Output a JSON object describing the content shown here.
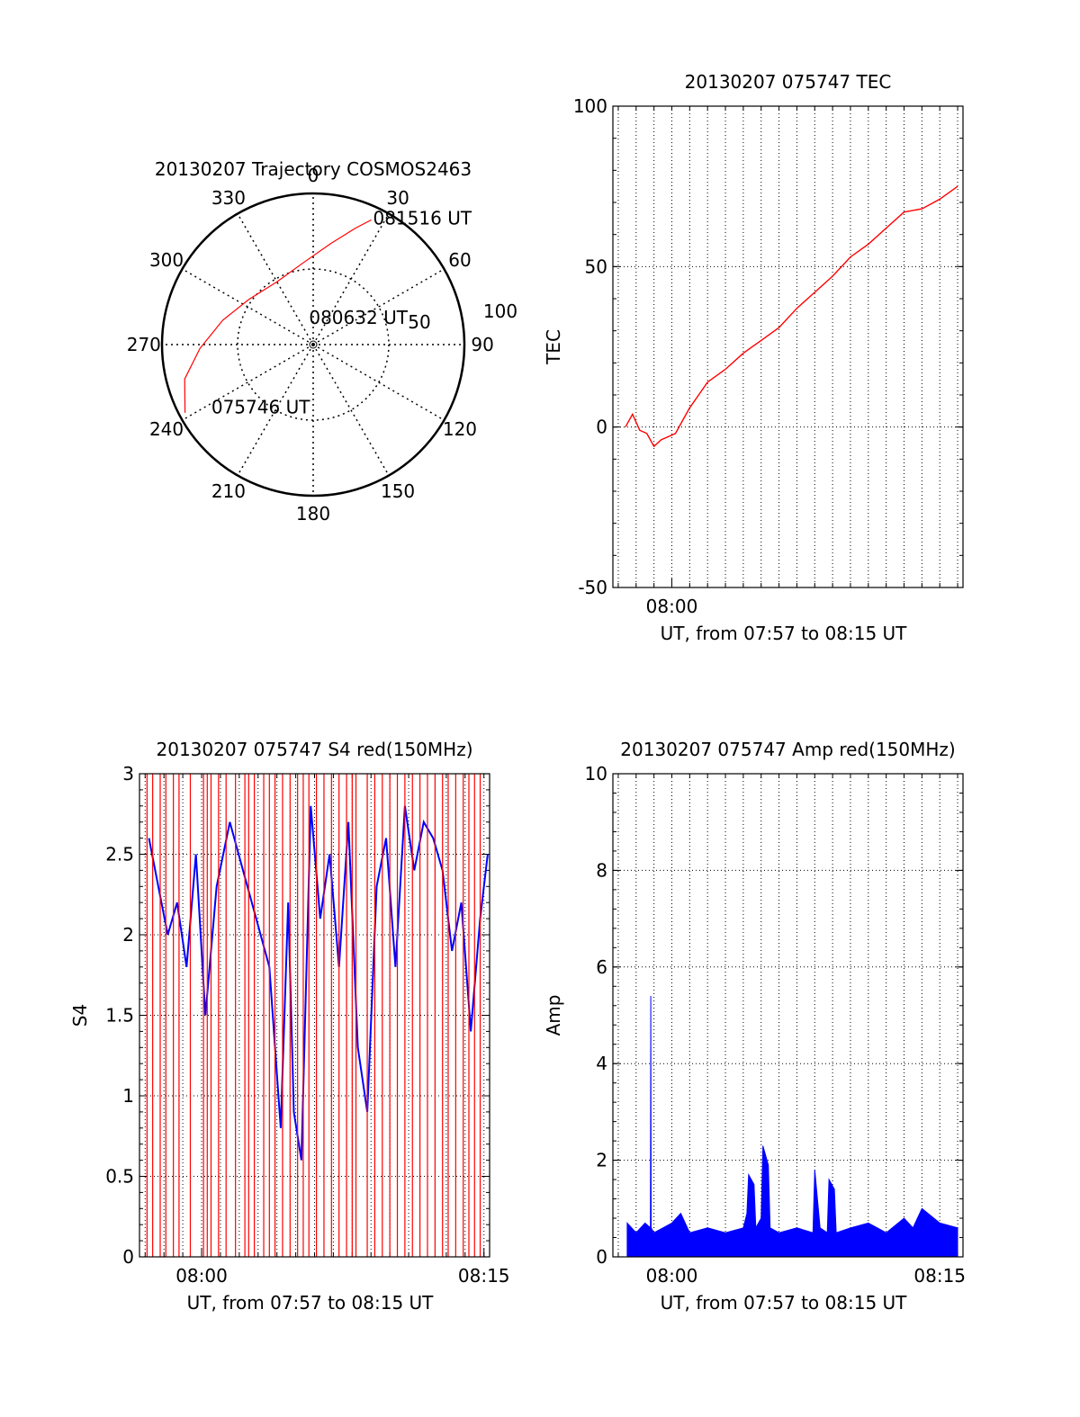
{
  "chart_data": [
    {
      "type": "polar",
      "title": "20130207 Trajectory COSMOS2463",
      "azimuth_labels": [
        "0",
        "30",
        "60",
        "90",
        "120",
        "150",
        "180",
        "210",
        "240",
        "270",
        "300",
        "330"
      ],
      "ring_labels": [
        "50",
        "100"
      ],
      "track_color": "#ff0000",
      "track": [
        {
          "az": 242,
          "r": 96
        },
        {
          "az": 255,
          "r": 88
        },
        {
          "az": 268,
          "r": 75
        },
        {
          "az": 285,
          "r": 62
        },
        {
          "az": 305,
          "r": 52
        },
        {
          "az": 330,
          "r": 48
        },
        {
          "az": 352,
          "r": 54
        },
        {
          "az": 10,
          "r": 68
        },
        {
          "az": 20,
          "r": 82
        },
        {
          "az": 25,
          "r": 91
        }
      ],
      "annotations": [
        {
          "text": "081516 UT",
          "az": 26,
          "r": 93
        },
        {
          "text": "080632 UT",
          "az": 355,
          "r": 18
        },
        {
          "text": "075746 UT",
          "az": 238,
          "r": 78
        }
      ]
    },
    {
      "type": "line",
      "title": "20130207 075747 TEC",
      "xlabel": "UT, from 07:57 to 08:15 UT",
      "ylabel": "TEC",
      "xlim": [
        -3.3,
        16.3
      ],
      "ylim": [
        -50,
        100
      ],
      "yticks": [
        "-50",
        "0",
        "50",
        "100"
      ],
      "xticks": [
        {
          "value": 0,
          "label": "08:00"
        }
      ],
      "series": [
        {
          "color": "#ff0000",
          "x": [
            -2.6,
            -2.2,
            -1.8,
            -1.4,
            -1.0,
            -0.6,
            -0.2,
            0.2,
            0.6,
            1.0,
            1.5,
            2.0,
            3.0,
            4.0,
            5.0,
            6.0,
            7.0,
            8.0,
            9.0,
            10.0,
            11.0,
            12.0,
            13.0,
            14.0,
            15.0,
            16.0
          ],
          "y": [
            0,
            4,
            -1,
            -2,
            -6,
            -4,
            -3,
            -2,
            2,
            6,
            10,
            14,
            18,
            23,
            27,
            31,
            37,
            42,
            47,
            53,
            57,
            62,
            67,
            68,
            71,
            75
          ]
        }
      ]
    },
    {
      "type": "line",
      "title": "20130207 075747 S4 red(150MHz)",
      "xlabel": "UT, from 07:57 to 08:15 UT",
      "ylabel": "S4",
      "xlim": [
        -3.3,
        15.3
      ],
      "ylim": [
        0,
        3
      ],
      "yticks": [
        "0",
        "0.5",
        "1",
        "1.5",
        "2",
        "2.5",
        "3"
      ],
      "xticks": [
        {
          "value": 0,
          "label": "08:00"
        },
        {
          "value": 15,
          "label": "08:15"
        }
      ],
      "series": [
        {
          "color": "#0000ff",
          "x": [
            -2.8,
            -2.3,
            -1.8,
            -1.3,
            -0.8,
            -0.3,
            0.2,
            0.8,
            1.5,
            2.2,
            2.9,
            3.6,
            4.2,
            4.6,
            4.9,
            5.3,
            5.8,
            6.3,
            6.8,
            7.3,
            7.8,
            8.3,
            8.8,
            9.3,
            9.8,
            10.3,
            10.8,
            11.3,
            11.8,
            12.3,
            12.8,
            13.3,
            13.8,
            14.3,
            14.8,
            15.2
          ],
          "y": [
            2.6,
            2.3,
            2.0,
            2.2,
            1.8,
            2.5,
            1.5,
            2.3,
            2.7,
            2.4,
            2.1,
            1.8,
            0.8,
            2.2,
            0.9,
            0.6,
            2.8,
            2.1,
            2.5,
            1.8,
            2.7,
            1.3,
            0.9,
            2.3,
            2.6,
            1.8,
            2.8,
            2.4,
            2.7,
            2.6,
            2.4,
            1.9,
            2.2,
            1.4,
            2.1,
            2.5
          ]
        },
        {
          "color": "#ff0000",
          "spikes": [
            -2.9,
            -2.6,
            -2.2,
            -1.9,
            -1.5,
            -1.2,
            -0.6,
            0.1,
            0.3,
            0.5,
            0.9,
            1.3,
            1.8,
            2.3,
            2.5,
            2.8,
            3.3,
            3.6,
            3.9,
            4.3,
            4.7,
            5.1,
            5.4,
            5.7,
            6.1,
            6.5,
            6.9,
            7.3,
            7.7,
            8.0,
            8.2,
            8.8,
            9.2,
            9.6,
            10.0,
            10.4,
            10.8,
            11.2,
            11.6,
            12.0,
            12.4,
            12.8,
            13.1,
            13.5,
            13.9,
            14.2,
            14.5,
            14.8
          ]
        }
      ]
    },
    {
      "type": "line",
      "title": "20130207 075747 Amp red(150MHz)",
      "xlabel": "UT, from 07:57 to 08:15 UT",
      "ylabel": "Amp",
      "xlim": [
        -3.3,
        16.3
      ],
      "ylim": [
        0,
        10
      ],
      "yticks": [
        "0",
        "2",
        "4",
        "6",
        "8",
        "10"
      ],
      "xticks": [
        {
          "value": 0,
          "label": "08:00"
        },
        {
          "value": 15,
          "label": "08:15"
        }
      ],
      "series": [
        {
          "color": "#0000ff",
          "x": [
            -2.5,
            -2.0,
            -1.5,
            -1.2,
            -1.18,
            -1.16,
            -1.0,
            -0.5,
            0.0,
            0.5,
            1.0,
            2.0,
            3.0,
            4.0,
            4.2,
            4.3,
            4.6,
            4.7,
            5.0,
            5.1,
            5.4,
            5.5,
            6.0,
            7.0,
            7.9,
            8.0,
            8.3,
            8.7,
            8.8,
            9.1,
            9.2,
            10.0,
            11.0,
            12.0,
            13.0,
            13.5,
            14.0,
            15.0,
            16.0
          ],
          "y": [
            0.7,
            0.5,
            0.7,
            0.6,
            5.4,
            0.6,
            0.5,
            0.6,
            0.7,
            0.9,
            0.5,
            0.6,
            0.5,
            0.6,
            0.9,
            1.7,
            1.5,
            0.6,
            0.8,
            2.3,
            1.9,
            0.6,
            0.5,
            0.6,
            0.5,
            1.8,
            0.6,
            0.5,
            1.6,
            1.4,
            0.5,
            0.6,
            0.7,
            0.5,
            0.8,
            0.6,
            1.0,
            0.7,
            0.6
          ]
        }
      ]
    }
  ]
}
